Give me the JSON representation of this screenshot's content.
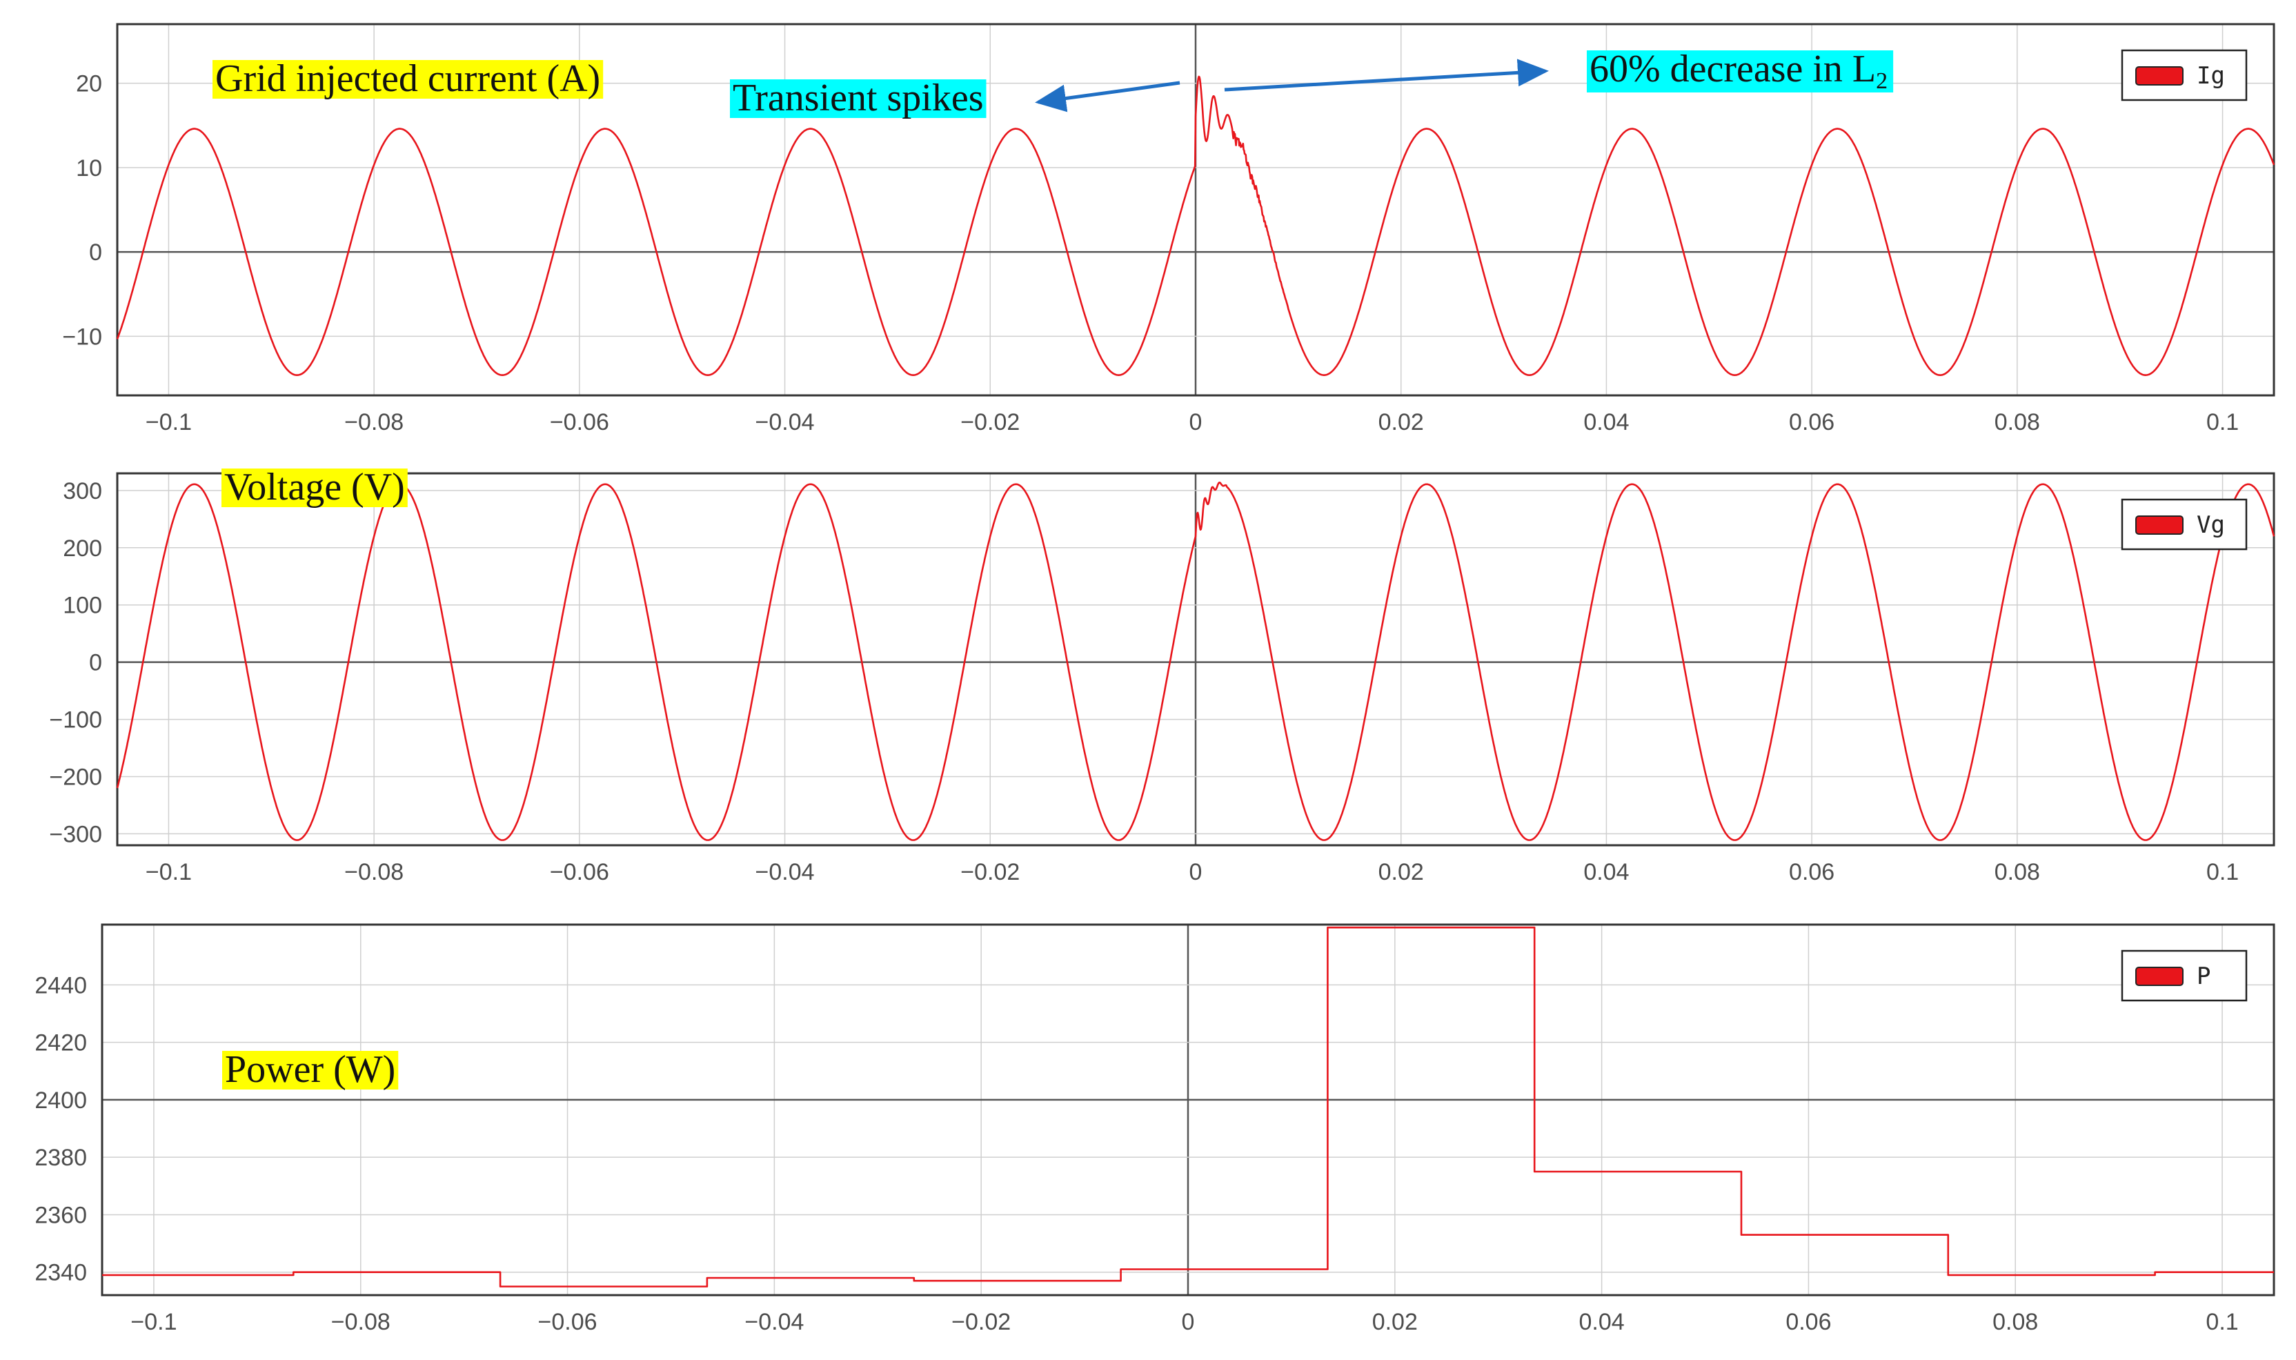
{
  "chart_data": [
    {
      "type": "line",
      "ylabel_annotation": "Grid injected current (A)",
      "series": [
        {
          "name": "Ig",
          "color": "#e8151b"
        }
      ],
      "signal": {
        "amplitude": 14.6,
        "frequency_hz": 50,
        "phase_offset_s": 0.0025
      },
      "transient": {
        "peak": 26,
        "time_s": 0.0,
        "end_s": 0.009
      },
      "xlim": [
        -0.105,
        0.105
      ],
      "ylim": [
        -17,
        27
      ],
      "xticks": [
        -0.1,
        -0.08,
        -0.06,
        -0.04,
        -0.02,
        0,
        0.02,
        0.04,
        0.06,
        0.08,
        0.1
      ],
      "xtick_labels": [
        "−0.1",
        "−0.08",
        "−0.06",
        "−0.04",
        "−0.02",
        "0",
        "0.02",
        "0.04",
        "0.06",
        "0.08",
        "0.1"
      ],
      "yticks": [
        20,
        10,
        0,
        -10
      ],
      "ytick_labels": [
        "20",
        "10",
        "0",
        "−10"
      ],
      "annotations": [
        {
          "text": "Transient spikes",
          "highlight": "#00ffff"
        },
        {
          "text": "60% decrease in L",
          "subscript": "2",
          "highlight": "#00ffff"
        }
      ],
      "legend": "top-right",
      "grid": true
    },
    {
      "type": "line",
      "ylabel_annotation": "Voltage (V)",
      "series": [
        {
          "name": "Vg",
          "color": "#e8151b"
        }
      ],
      "signal": {
        "amplitude": 311,
        "frequency_hz": 50,
        "phase_offset_s": 0.0025
      },
      "xlim": [
        -0.105,
        0.105
      ],
      "ylim": [
        -320,
        330
      ],
      "xticks": [
        -0.1,
        -0.08,
        -0.06,
        -0.04,
        -0.02,
        0,
        0.02,
        0.04,
        0.06,
        0.08,
        0.1
      ],
      "xtick_labels": [
        "−0.1",
        "−0.08",
        "−0.06",
        "−0.04",
        "−0.02",
        "0",
        "0.02",
        "0.04",
        "0.06",
        "0.08",
        "0.1"
      ],
      "yticks": [
        300,
        200,
        100,
        0,
        -100,
        -200,
        -300
      ],
      "ytick_labels": [
        "300",
        "200",
        "100",
        "0",
        "−100",
        "−200",
        "−300"
      ],
      "legend": "top-right",
      "grid": true
    },
    {
      "type": "line",
      "ylabel_annotation": "Power (W)",
      "series": [
        {
          "name": "P",
          "color": "#e8151b",
          "steps": [
            {
              "x0": -0.105,
              "x1": -0.0865,
              "y": 2339
            },
            {
              "x0": -0.0865,
              "x1": -0.0665,
              "y": 2340
            },
            {
              "x0": -0.0665,
              "x1": -0.0465,
              "y": 2335
            },
            {
              "x0": -0.0465,
              "x1": -0.0265,
              "y": 2338
            },
            {
              "x0": -0.0265,
              "x1": -0.0065,
              "y": 2337
            },
            {
              "x0": -0.0065,
              "x1": 0.0135,
              "y": 2341
            },
            {
              "x0": 0.0135,
              "x1": 0.0335,
              "y": 2460
            },
            {
              "x0": 0.0335,
              "x1": 0.0535,
              "y": 2375
            },
            {
              "x0": 0.0535,
              "x1": 0.0735,
              "y": 2353
            },
            {
              "x0": 0.0735,
              "x1": 0.0935,
              "y": 2339
            },
            {
              "x0": 0.0935,
              "x1": 0.105,
              "y": 2340
            }
          ]
        }
      ],
      "xlim": [
        -0.105,
        0.105
      ],
      "ylim": [
        2332,
        2461
      ],
      "xticks": [
        -0.1,
        -0.08,
        -0.06,
        -0.04,
        -0.02,
        0,
        0.02,
        0.04,
        0.06,
        0.08,
        0.1
      ],
      "xtick_labels": [
        "−0.1",
        "−0.08",
        "−0.06",
        "−0.04",
        "−0.02",
        "0",
        "0.02",
        "0.04",
        "0.06",
        "0.08",
        "0.1"
      ],
      "yticks": [
        2440,
        2420,
        2400,
        2380,
        2360,
        2340
      ],
      "ytick_labels": [
        "2440",
        "2420",
        "2400",
        "2380",
        "2360",
        "2340"
      ],
      "legend": "top-right",
      "grid": true
    }
  ],
  "colors": {
    "trace": "#e8151b",
    "grid": "#cfcfcf",
    "axis": "#333333",
    "annotation_highlight_yellow": "#ffff00",
    "annotation_highlight_cyan": "#00ffff",
    "arrow": "#1f6fc4"
  }
}
